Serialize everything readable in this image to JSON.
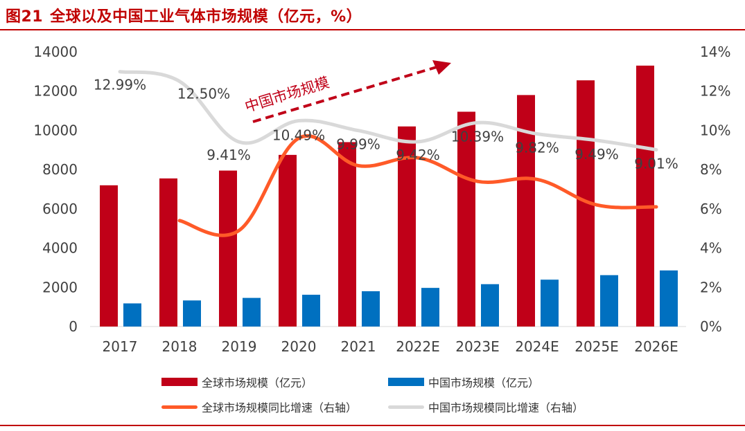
{
  "figure": {
    "number": "图21",
    "title": "全球以及中国工业气体市场规模（亿元，%）"
  },
  "chart_data": {
    "type": "bar",
    "categories": [
      "2017",
      "2018",
      "2019",
      "2020",
      "2021",
      "2022E",
      "2023E",
      "2024E",
      "2025E",
      "2026E"
    ],
    "y_left": {
      "ylim": [
        0,
        14000
      ],
      "ticks": [
        "0",
        "2000",
        "4000",
        "6000",
        "8000",
        "10000",
        "12000",
        "14000"
      ]
    },
    "y_right": {
      "ylim": [
        0,
        14
      ],
      "ticks": [
        "0%",
        "2%",
        "4%",
        "6%",
        "8%",
        "10%",
        "12%",
        "14%"
      ]
    },
    "series": [
      {
        "name": "全球市场规模（亿元）",
        "kind": "bar",
        "axis": "left",
        "color": "#c00018",
        "values": [
          7200,
          7550,
          7950,
          8750,
          9400,
          10200,
          10950,
          11800,
          12550,
          13300
        ]
      },
      {
        "name": "中国市场规模（亿元）",
        "kind": "bar",
        "axis": "left",
        "color": "#0070c0",
        "values": [
          1180,
          1330,
          1460,
          1620,
          1800,
          1970,
          2160,
          2390,
          2620,
          2860
        ]
      },
      {
        "name": "全球市场规模同比增速（右轴）",
        "kind": "line",
        "axis": "right",
        "color": "#ff5a28",
        "values": [
          null,
          5.4,
          4.9,
          9.6,
          8.2,
          8.6,
          7.4,
          7.5,
          6.2,
          6.1
        ]
      },
      {
        "name": "中国市场规模同比增速（右轴）",
        "kind": "line",
        "axis": "right",
        "color": "#d9d9d9",
        "values": [
          12.99,
          12.5,
          9.41,
          10.49,
          9.99,
          9.42,
          10.39,
          9.82,
          9.49,
          9.01
        ]
      }
    ],
    "data_labels": [
      "12.99%",
      "12.50%",
      "9.41%",
      "10.49%",
      "9.99%",
      "9.42%",
      "10.39%",
      "9.82%",
      "9.49%",
      "9.01%"
    ],
    "annotation": {
      "text": "中国市场规模",
      "style": "dashed-arrow-up-right",
      "color": "#c00018"
    }
  }
}
